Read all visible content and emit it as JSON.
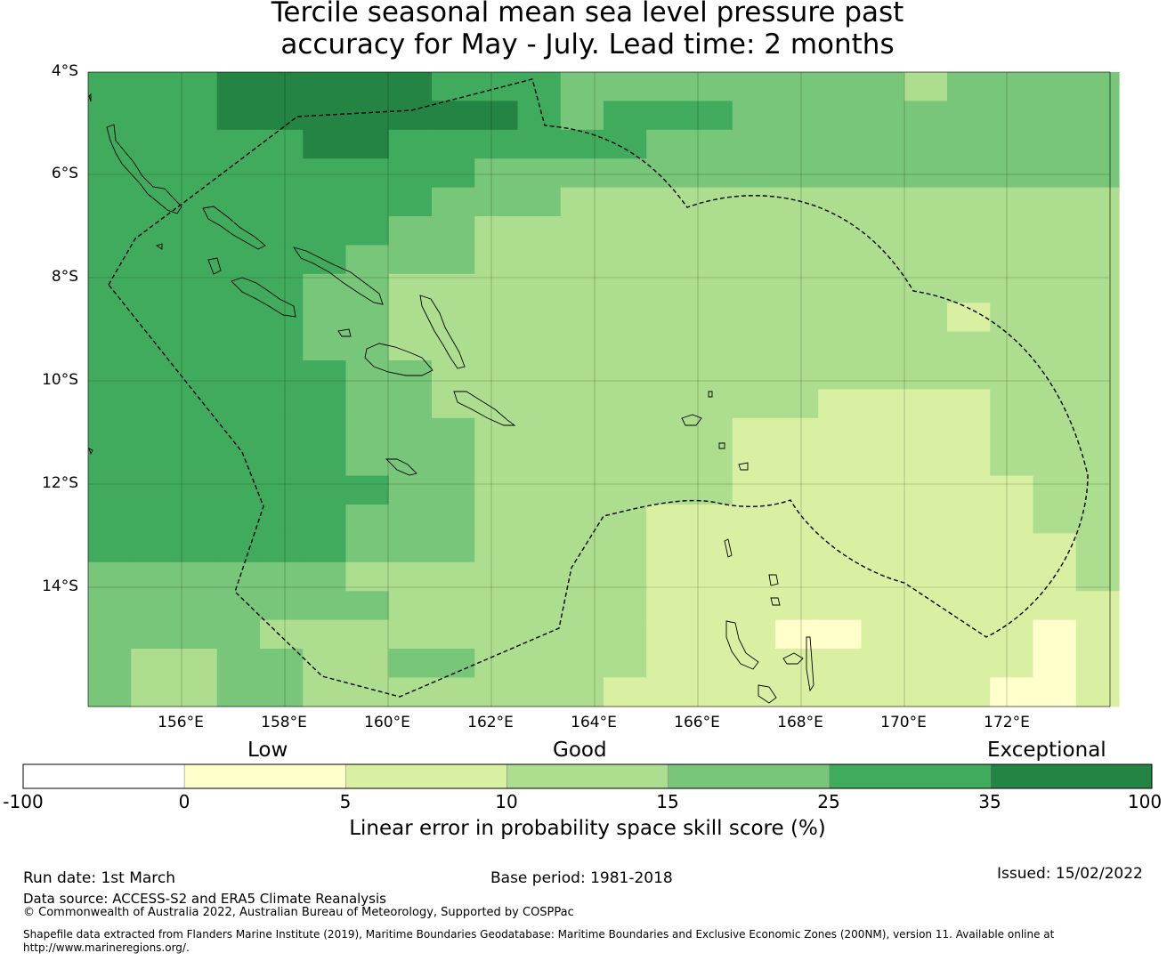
{
  "title": {
    "line1": "Tercile seasonal mean sea level pressure past",
    "line2": "accuracy for May - July. Lead time: 2 months"
  },
  "map": {
    "lat_labels": [
      "4°S",
      "6°S",
      "8°S",
      "10°S",
      "12°S",
      "14°S"
    ],
    "lon_labels": [
      "156°E",
      "158°E",
      "160°E",
      "162°E",
      "164°E",
      "166°E",
      "168°E",
      "170°E",
      "172°E"
    ],
    "grid_rows": [
      "AAAAAAAAAAAAAAAAAAAAAAAAAA",
      "AAABBBBBBAAAAAAAAAAAAAAAAA",
      "AAAAAABBBAAAAAAAAAAAAAAAAA",
      "AAAAAAAAAAAAAAAAAAAAAAAAAA",
      "AAAAAAAAAAAAAAAAAAAAAAAAAA",
      "AAAAAAAAAAAAAAAAAAAAAAAAAA",
      "AAAAAAAAAAAAAAAAAAAAAAAAAA",
      "AAAAAAAAAAAAAAAAAAAAAAAAAA"
    ],
    "shading_levels": [
      "#ffffcc",
      "#d9f0a3",
      "#addd8e",
      "#78c679",
      "#41ab5d",
      "#238443"
    ]
  },
  "legend": {
    "categories": [
      "Low",
      "Good",
      "Exceptional"
    ],
    "ticks": [
      "-100",
      "0",
      "5",
      "10",
      "15",
      "25",
      "35",
      "100"
    ],
    "colors": [
      "#ffffff",
      "#ffffcc",
      "#d9f0a3",
      "#addd8e",
      "#78c679",
      "#41ab5d",
      "#238443"
    ],
    "title": "Linear error in probability space skill score (%)"
  },
  "footer": {
    "run_date": "Run date: 1st March",
    "base_period": "Base period: 1981-2018",
    "issued": "Issued: 15/02/2022",
    "data_source": "Data source: ACCESS-S2 and ERA5 Climate Reanalysis",
    "copyright": "© Commonwealth of Australia 2022, Australian Bureau of Meteorology, Supported by COSPPac",
    "shapefile_line1": "Shapefile data extracted from Flanders Marine Institute (2019), Maritime Boundaries Geodatabase: Maritime Boundaries and Exclusive Economic Zones (200NM), version 11. Available online at",
    "shapefile_line2": "http://www.marineregions.org/."
  }
}
